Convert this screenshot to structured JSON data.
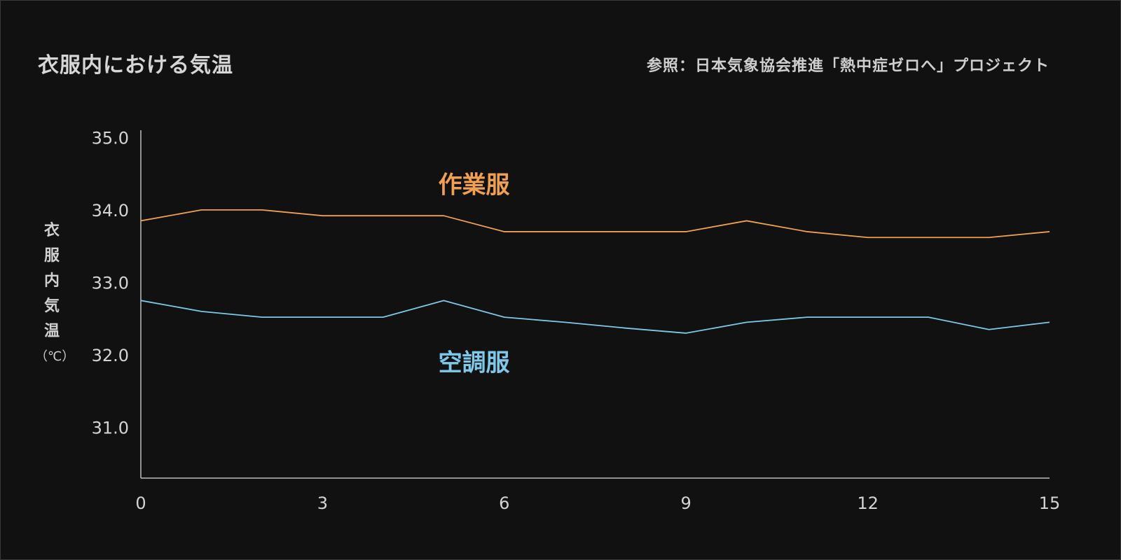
{
  "title": "衣服内における気温",
  "source": "参照：日本気象協会推進「熱中症ゼロへ」プロジェクト",
  "ylabel_chars": [
    "衣",
    "服",
    "内",
    "気",
    "温"
  ],
  "ylabel_unit": "（℃）",
  "chart_data": {
    "type": "line",
    "title": "衣服内における気温",
    "xlabel": "",
    "ylabel": "衣服内気温（℃）",
    "xlim": [
      0,
      15
    ],
    "ylim": [
      30.3,
      35.1
    ],
    "xticks": [
      0,
      3,
      6,
      9,
      12,
      15
    ],
    "yticks": [
      31.0,
      32.0,
      33.0,
      34.0,
      35.0
    ],
    "grid": false,
    "x": [
      0,
      1,
      2,
      3,
      4,
      5,
      6,
      7,
      8,
      9,
      10,
      11,
      12,
      13,
      14,
      15
    ],
    "series": [
      {
        "name": "作業服",
        "color": "#f0a050",
        "values": [
          33.85,
          34.0,
          34.0,
          33.92,
          33.92,
          33.92,
          33.7,
          33.7,
          33.7,
          33.7,
          33.85,
          33.7,
          33.62,
          33.62,
          33.62,
          33.7
        ]
      },
      {
        "name": "空調服",
        "color": "#7ec8ea",
        "values": [
          32.75,
          32.6,
          32.52,
          32.52,
          32.52,
          32.75,
          32.52,
          32.45,
          32.37,
          32.3,
          32.45,
          32.52,
          32.52,
          32.52,
          32.35,
          32.45
        ]
      }
    ]
  }
}
